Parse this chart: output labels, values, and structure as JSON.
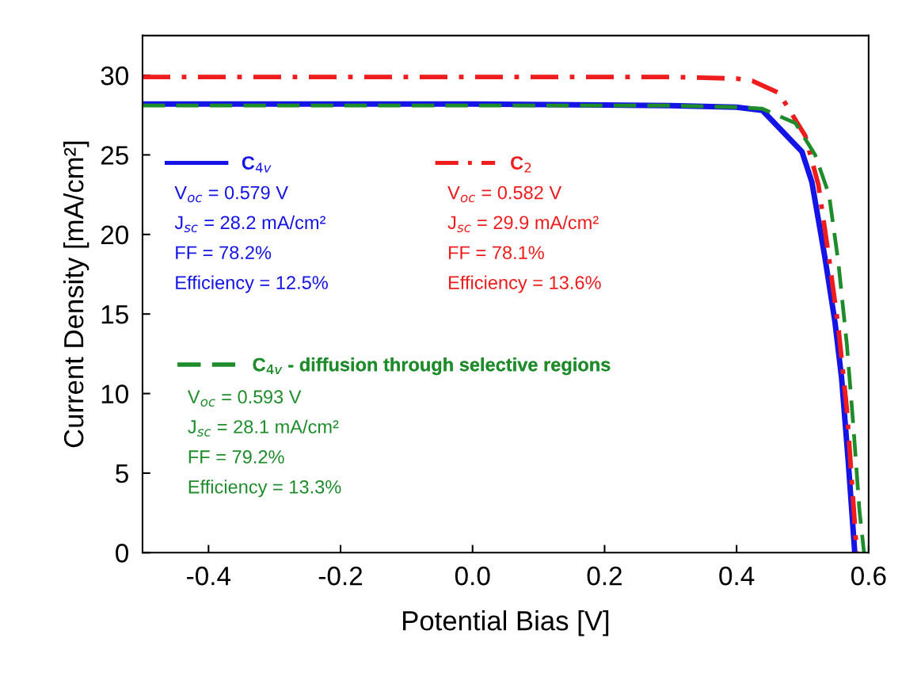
{
  "chart_data": {
    "type": "line",
    "xlabel": "Potential Bias [V]",
    "ylabel": "Current Density [mA/cm²]",
    "xlim": [
      -0.5,
      0.6
    ],
    "xticks": [
      {
        "value": -0.4,
        "label": "-0.4"
      },
      {
        "value": -0.2,
        "label": "-0.2"
      },
      {
        "value": 0.0,
        "label": "0.0"
      },
      {
        "value": 0.2,
        "label": "0.2"
      },
      {
        "value": 0.4,
        "label": "0.4"
      },
      {
        "value": 0.6,
        "label": "0.6"
      }
    ],
    "ylim": [
      0,
      32.5
    ],
    "yticks": [
      0,
      5,
      10,
      15,
      20,
      25,
      30
    ],
    "grid": false,
    "legend": "top left",
    "series": [
      {
        "name": "C$_{4v}$",
        "color": "#1414e6",
        "line_style": "solid",
        "x": [
          -0.5,
          0.0,
          0.3,
          0.4,
          0.439,
          0.499,
          0.514,
          0.534,
          0.549,
          0.559,
          0.569,
          0.579
        ],
        "values": [
          28.2,
          28.2,
          28.1,
          28.0,
          27.8,
          25.2,
          23.3,
          18.5,
          14.5,
          11.0,
          5.8,
          0
        ]
      },
      {
        "name": "C$_{2}$",
        "color": "#ee1c1c",
        "line_style": "dashdot",
        "x": [
          -0.5,
          0.0,
          0.3,
          0.4,
          0.424,
          0.464,
          0.504,
          0.524,
          0.54,
          0.554,
          0.567,
          0.574,
          0.582
        ],
        "values": [
          29.9,
          29.9,
          29.9,
          29.8,
          29.65,
          28.9,
          26.2,
          23.1,
          18.5,
          14.2,
          9.0,
          4.8,
          0
        ]
      },
      {
        "name": "C$_{4v}$ - diffusion through selective regions",
        "color": "#1e8c2a",
        "line_style": "dashed",
        "x": [
          -0.5,
          0.0,
          0.3,
          0.4,
          0.439,
          0.489,
          0.519,
          0.54,
          0.554,
          0.567,
          0.577,
          0.586,
          0.593
        ],
        "values": [
          28.1,
          28.1,
          28.1,
          28.0,
          27.9,
          27.0,
          25.0,
          22.5,
          18.3,
          13.1,
          7.9,
          2.7,
          0
        ]
      }
    ],
    "annotations": [
      "V$_{oc}$ = 0.579 V",
      "J$_{sc}$ = 28.2 mA/cm²",
      "FF = 78.2%",
      "Efficiency = 12.5%",
      "V$_{oc}$ = 0.582 V",
      "J$_{sc}$ = 29.9 mA/cm²",
      "FF = 78.1%",
      "Efficiency = 13.6%",
      "V$_{oc}$ = 0.593 V",
      "J$_{sc}$ = 28.1 mA/cm²",
      "FF = 79.2%",
      "Efficiency = 13.3%"
    ]
  }
}
